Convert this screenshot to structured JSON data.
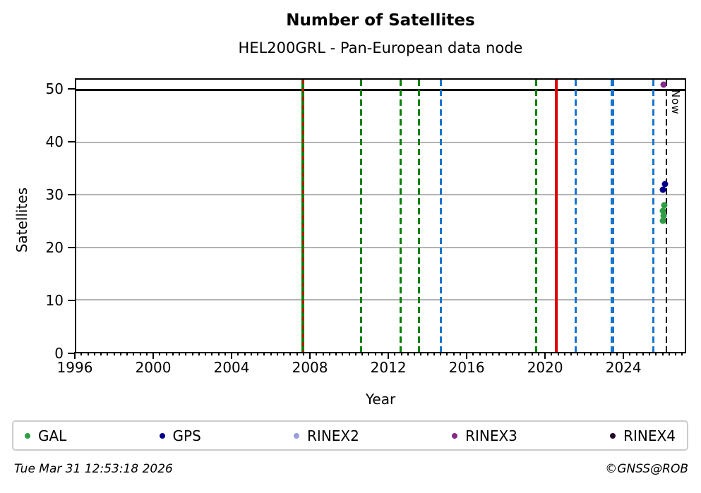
{
  "title": "Number of Satellites",
  "subtitle": "HEL200GRL - Pan-European data node",
  "footer": {
    "timestamp": "Tue Mar 31 12:53:18 2026",
    "credit": "©GNSS@ROB"
  },
  "chart_data": {
    "type": "scatter",
    "title": "Number of Satellites",
    "subtitle": "HEL200GRL - Pan-European data node",
    "xlabel": "Year",
    "ylabel": "Satellites",
    "xlim": [
      1996,
      2027.2
    ],
    "ylim": [
      0,
      52
    ],
    "xticks": [
      1996,
      2000,
      2004,
      2008,
      2012,
      2016,
      2020,
      2024
    ],
    "x_minor_step_years": 0.33333,
    "yticks": [
      0,
      10,
      20,
      30,
      40,
      50
    ],
    "grid": "horizontal-only",
    "grid_y": [
      10,
      20,
      30,
      40
    ],
    "grid_color": "#b3b3b3",
    "hline": {
      "y": 50,
      "color": "#000000"
    },
    "legend_position": "bottom",
    "series": [
      {
        "name": "GAL",
        "color": "#2e9e44",
        "points": [
          [
            2026.06,
            25
          ],
          [
            2026.11,
            26
          ],
          [
            2026.09,
            27
          ],
          [
            2026.14,
            28
          ]
        ]
      },
      {
        "name": "GPS",
        "color": "#00008b",
        "points": [
          [
            2026.08,
            31
          ],
          [
            2026.18,
            32
          ]
        ]
      },
      {
        "name": "RINEX2",
        "color": "#9b9bdf",
        "points": []
      },
      {
        "name": "RINEX3",
        "color": "#852a85",
        "points": [
          [
            2026.11,
            51
          ]
        ]
      },
      {
        "name": "RINEX4",
        "color": "#220a2b",
        "points": []
      }
    ],
    "event_lines": [
      {
        "year": 2007.62,
        "color": "#008000",
        "style": "solid",
        "width": 4
      },
      {
        "year": 2007.62,
        "color": "#dd0000",
        "style": "dashed-short",
        "width": 2.5
      },
      {
        "year": 2010.62,
        "color": "#008000",
        "style": "dashed",
        "width": 3
      },
      {
        "year": 2012.62,
        "color": "#008000",
        "style": "dashed",
        "width": 3
      },
      {
        "year": 2013.58,
        "color": "#008000",
        "style": "dashed",
        "width": 3
      },
      {
        "year": 2014.68,
        "color": "#1874cd",
        "style": "dashed",
        "width": 3
      },
      {
        "year": 2019.58,
        "color": "#008000",
        "style": "dashed",
        "width": 3
      },
      {
        "year": 2020.62,
        "color": "#dd0000",
        "style": "solid",
        "width": 3.5
      },
      {
        "year": 2021.62,
        "color": "#1874cd",
        "style": "dashed",
        "width": 3
      },
      {
        "year": 2023.5,
        "color": "#1874cd",
        "style": "dashed",
        "width": 5
      },
      {
        "year": 2025.58,
        "color": "#1874cd",
        "style": "dashed",
        "width": 3
      }
    ],
    "now_line": {
      "year": 2026.25,
      "label": "Now",
      "color": "#000000",
      "style": "dashed",
      "width": 2.5
    }
  }
}
